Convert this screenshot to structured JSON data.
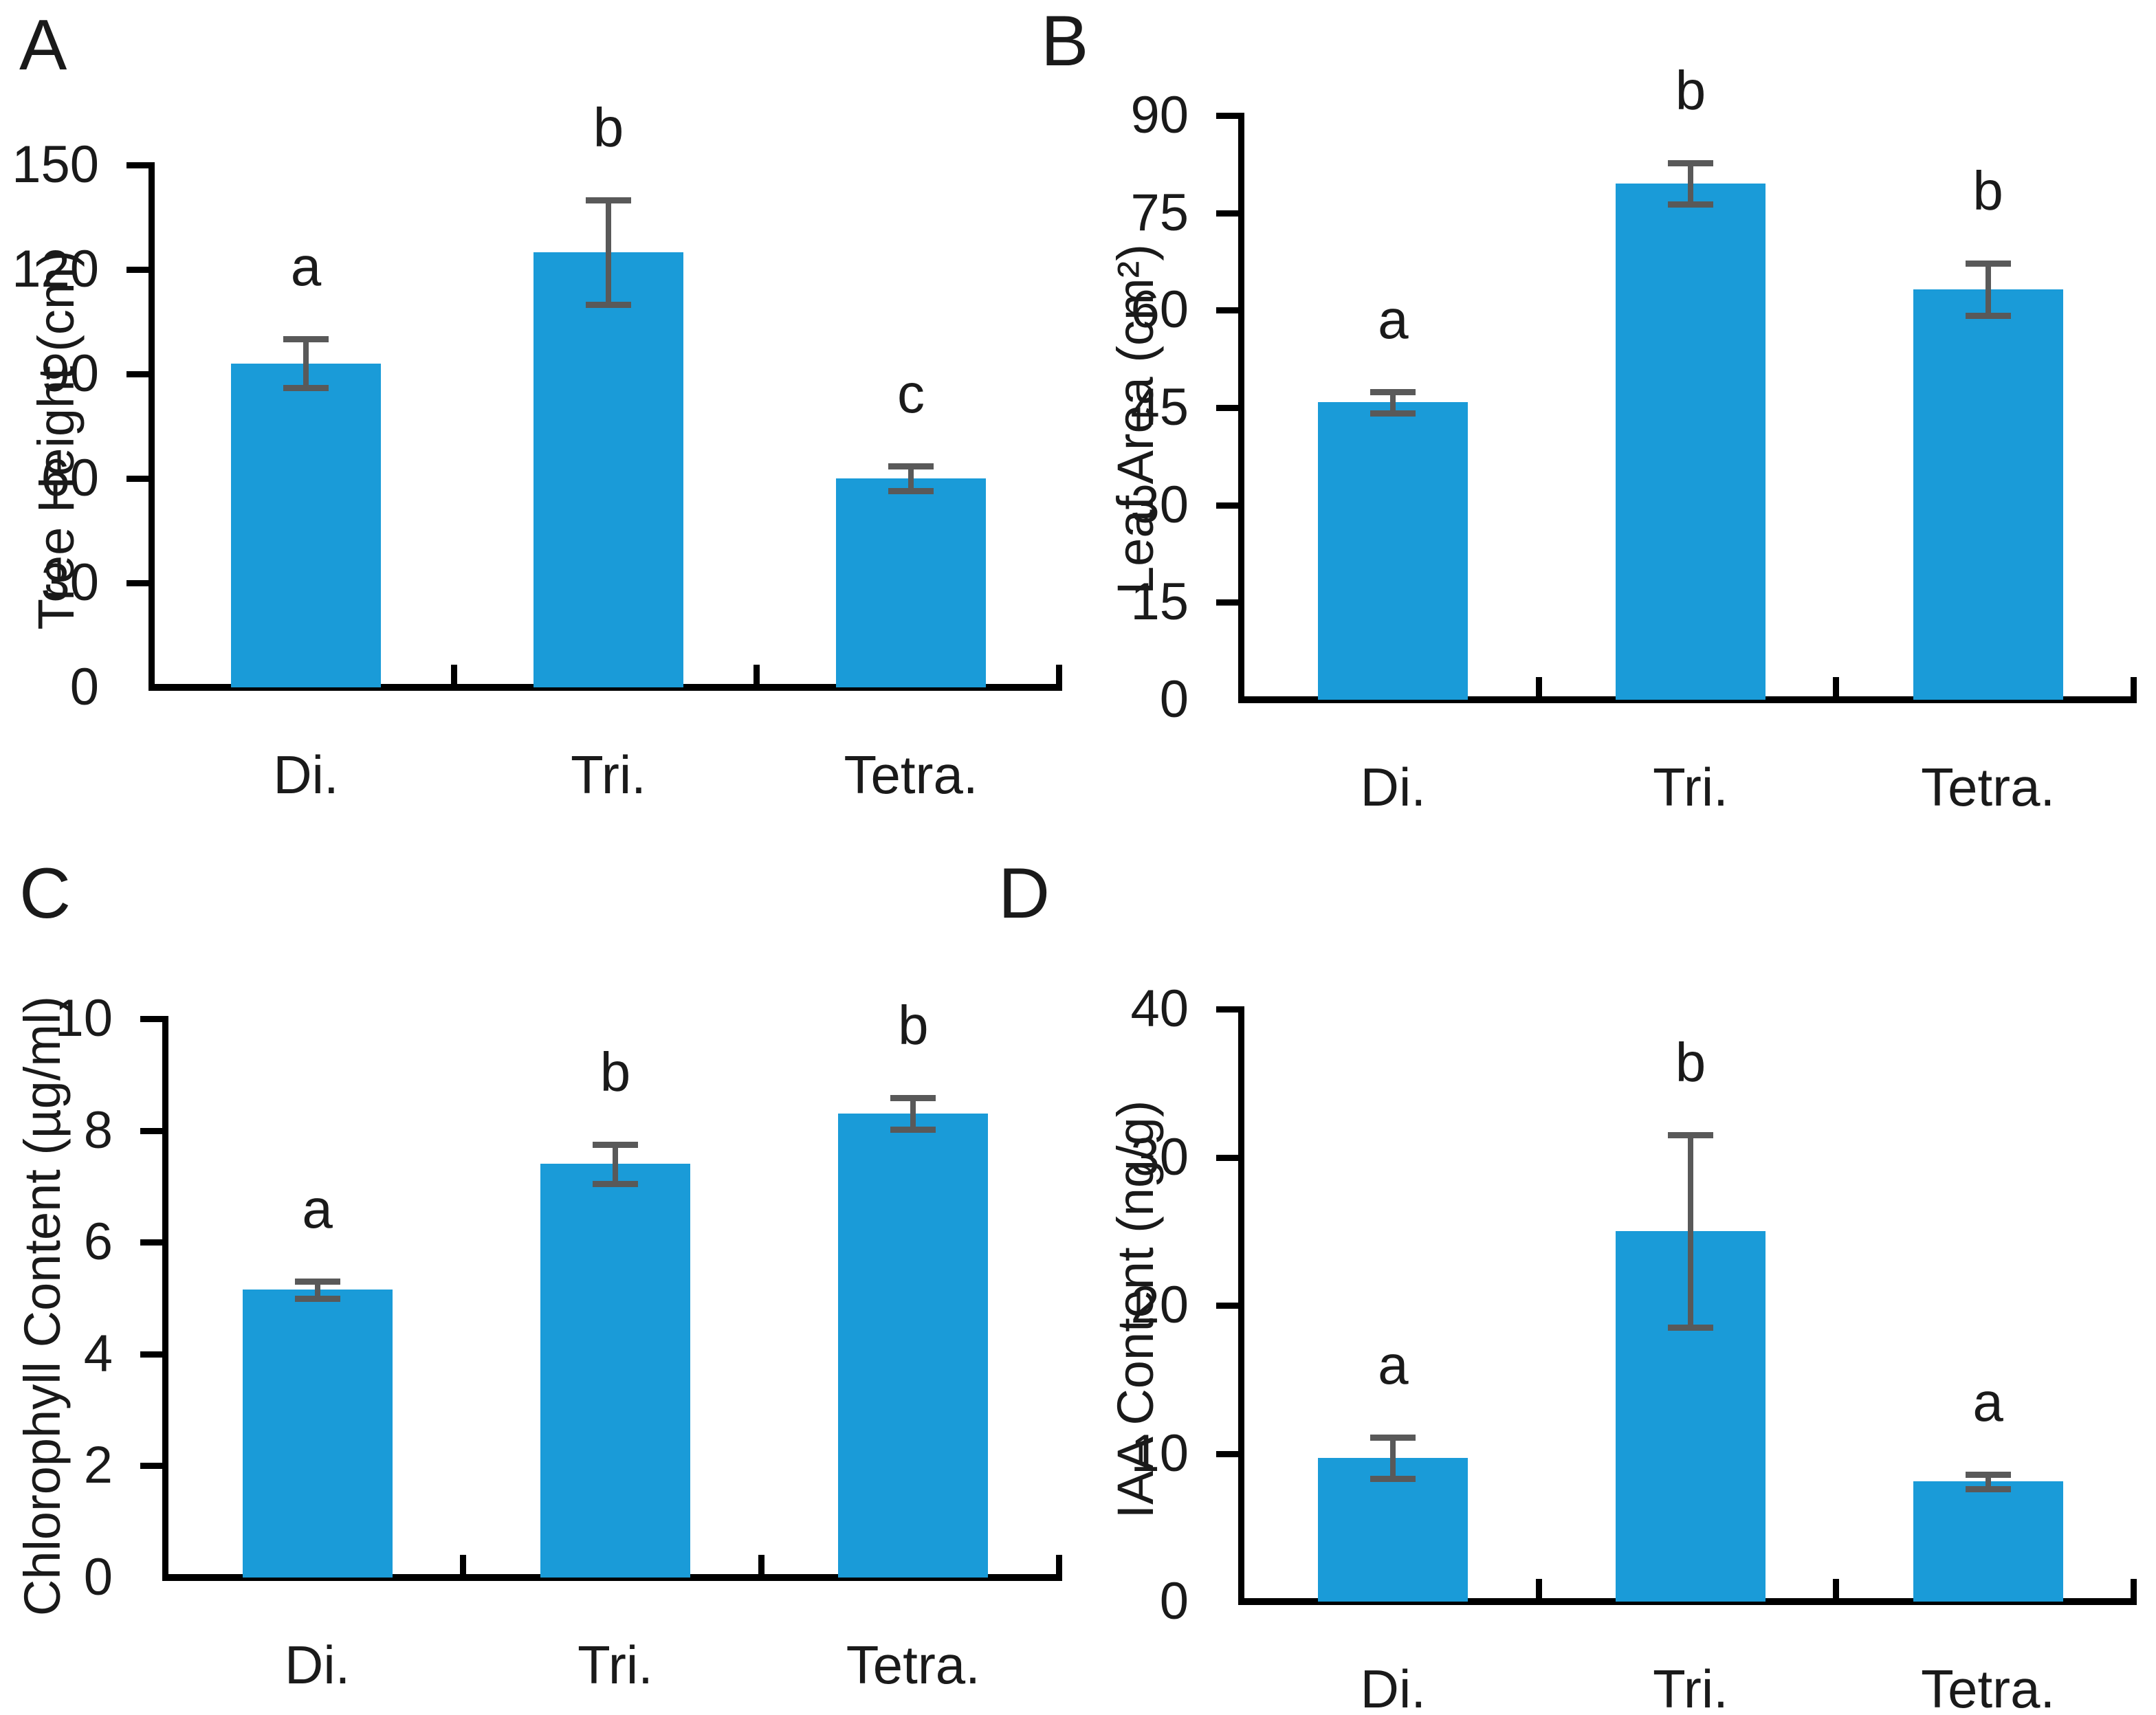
{
  "figure": {
    "background_color": "#ffffff",
    "bar_color": "#1a9bd8",
    "error_bar_color": "#595959",
    "axis_color": "#000000",
    "text_color": "#1a1a1a"
  },
  "chart_data": [
    {
      "type": "bar",
      "panel_label": "A",
      "title": "",
      "ylabel": "Tree Height (cm)",
      "xlabel": "",
      "categories": [
        "Di.",
        "Tri.",
        "Tetra."
      ],
      "values": [
        93,
        125,
        60
      ],
      "errors": [
        7,
        15,
        3.5
      ],
      "sig_letters": [
        "a",
        "b",
        "c"
      ],
      "ylim": [
        0,
        150
      ],
      "yticks": [
        0,
        30,
        60,
        90,
        120,
        150
      ],
      "grid": false,
      "legend": false
    },
    {
      "type": "bar",
      "panel_label": "B",
      "title": "",
      "ylabel": "Leaf Area (cm²)",
      "xlabel": "",
      "categories": [
        "Di.",
        "Tri.",
        "Tetra."
      ],
      "values": [
        45.8,
        79.5,
        63.2
      ],
      "errors": [
        1.6,
        3.2,
        4
      ],
      "sig_letters": [
        "a",
        "b",
        "b"
      ],
      "ylim": [
        0,
        90
      ],
      "yticks": [
        0,
        15,
        30,
        45,
        60,
        75,
        90
      ],
      "grid": false,
      "legend": false
    },
    {
      "type": "bar",
      "panel_label": "C",
      "title": "",
      "ylabel": "Chlorophyll Content (µg/ml)",
      "xlabel": "",
      "categories": [
        "Di.",
        "Tri.",
        "Tetra."
      ],
      "values": [
        5.15,
        7.4,
        8.3
      ],
      "errors": [
        0.15,
        0.35,
        0.28
      ],
      "sig_letters": [
        "a",
        "b",
        "b"
      ],
      "ylim": [
        0,
        10
      ],
      "yticks": [
        0,
        2,
        4,
        6,
        8,
        10
      ],
      "grid": false,
      "legend": false
    },
    {
      "type": "bar",
      "panel_label": "D",
      "title": "",
      "ylabel": "IAA Content (ng/g)",
      "xlabel": "",
      "categories": [
        "Di.",
        "Tri.",
        "Tetra."
      ],
      "values": [
        9.7,
        25,
        8.1
      ],
      "errors": [
        1.4,
        6.5,
        0.5
      ],
      "sig_letters": [
        "a",
        "b",
        "a"
      ],
      "ylim": [
        0,
        40
      ],
      "yticks": [
        0,
        10,
        20,
        30,
        40
      ],
      "grid": false,
      "legend": false
    }
  ]
}
